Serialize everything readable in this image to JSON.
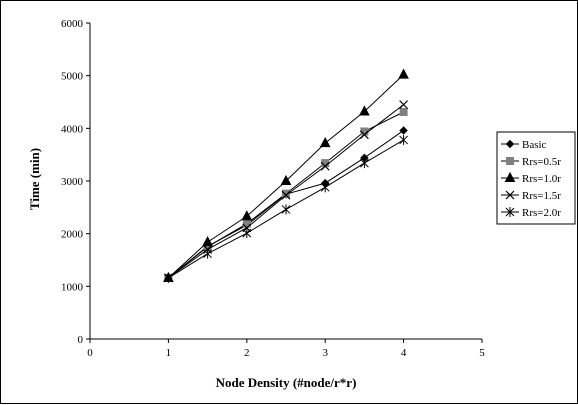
{
  "chart_data": {
    "type": "line",
    "title": "",
    "xlabel": "Node Density (#node/r*r)",
    "ylabel": "Time (min)",
    "xlim": [
      0,
      5
    ],
    "ylim": [
      0,
      6000
    ],
    "xticks": [
      "0",
      "1",
      "2",
      "3",
      "4",
      "5"
    ],
    "yticks": [
      "0",
      "1000",
      "2000",
      "3000",
      "4000",
      "5000",
      "6000"
    ],
    "grid": false,
    "legend": "right",
    "x": [
      1,
      1.5,
      2,
      2.5,
      3,
      3.5,
      4
    ],
    "series": [
      {
        "name": "Basic",
        "marker": "diamond",
        "color": "#000000",
        "values": [
          1160,
          1760,
          2160,
          2750,
          2960,
          3440,
          3960
        ]
      },
      {
        "name": "Rrs=0.5r",
        "marker": "square",
        "color": "#808080",
        "values": [
          1160,
          1750,
          2190,
          2760,
          3340,
          3940,
          4310
        ]
      },
      {
        "name": "Rrs=1.0r",
        "marker": "triangle",
        "color": "#000000",
        "values": [
          1160,
          1840,
          2330,
          3000,
          3720,
          4320,
          5020
        ]
      },
      {
        "name": "Rrs=1.5r",
        "marker": "x",
        "color": "#000000",
        "values": [
          1160,
          1700,
          2110,
          2730,
          3280,
          3880,
          4450
        ]
      },
      {
        "name": "Rrs=2.0r",
        "marker": "asterisk",
        "color": "#000000",
        "values": [
          1160,
          1620,
          2010,
          2460,
          2880,
          3340,
          3780
        ]
      }
    ]
  }
}
